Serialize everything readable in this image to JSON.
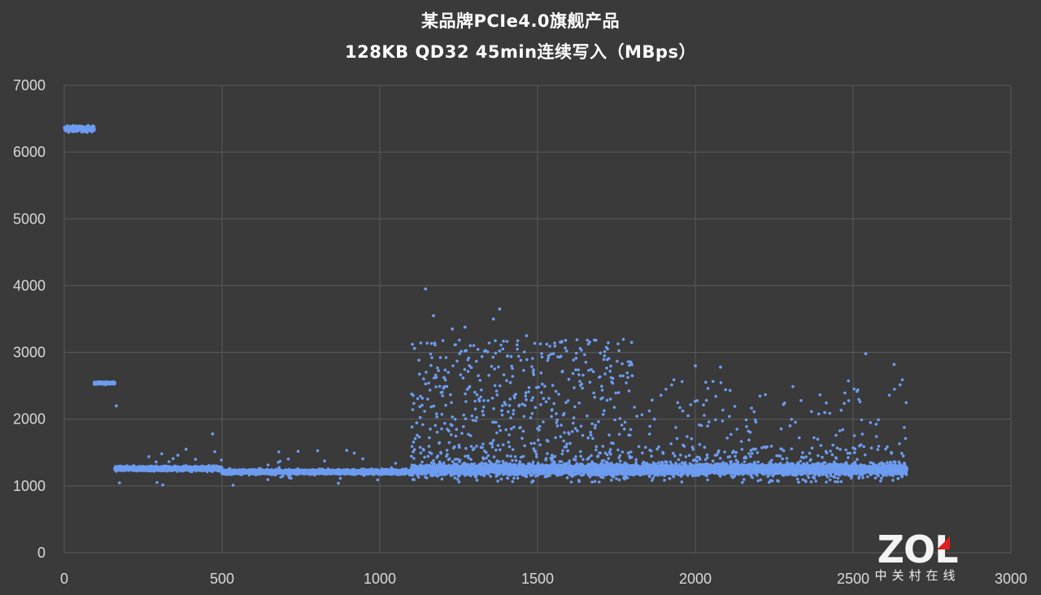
{
  "title": {
    "line1": "某品牌PCIe4.0旗舰产品",
    "line2": "128KB QD32 45min连续写入（MBps）"
  },
  "watermark": {
    "logo": "ZOL",
    "subtitle": "中关村在线"
  },
  "colors": {
    "background": "#3a3a3a",
    "gridline": "#5a5a5a",
    "points": "#6d9cf0",
    "text": "#ffffff"
  },
  "chart_data": {
    "type": "scatter",
    "title": "某品牌PCIe4.0旗舰产品 128KB QD32 45min连续写入（MBps）",
    "xlabel": "",
    "ylabel": "",
    "xlim": [
      0,
      3000
    ],
    "ylim": [
      0,
      7000
    ],
    "x_ticks": [
      0,
      500,
      1000,
      1500,
      2000,
      2500,
      3000
    ],
    "y_ticks": [
      0,
      1000,
      2000,
      3000,
      4000,
      5000,
      6000,
      7000
    ],
    "grid": true,
    "legend": "none",
    "series": [
      {
        "segments": [
          {
            "x_start": 1,
            "x_end": 95,
            "y_typical": 6350,
            "y_spread": [
              6250,
              6440
            ]
          },
          {
            "x_start": 95,
            "x_end": 160,
            "y_typical": 2540,
            "y_spread": [
              2490,
              2580
            ]
          },
          {
            "x_start": 160,
            "x_end": 1100,
            "y_typical": 1230,
            "y_spread": [
              1000,
              1780
            ]
          },
          {
            "x_start": 1100,
            "x_end": 2670,
            "y_typical": 1270,
            "y_spread": [
              1000,
              3950
            ]
          }
        ],
        "notable_points": [
          {
            "x": 1145,
            "y": 3950
          },
          {
            "x": 1380,
            "y": 3650
          },
          {
            "x": 1360,
            "y": 3500
          },
          {
            "x": 1170,
            "y": 3550
          },
          {
            "x": 1270,
            "y": 3380
          },
          {
            "x": 1230,
            "y": 3350
          },
          {
            "x": 1465,
            "y": 3250
          },
          {
            "x": 1110,
            "y": 3060
          },
          {
            "x": 1550,
            "y": 2980
          },
          {
            "x": 2540,
            "y": 2980
          },
          {
            "x": 2630,
            "y": 2820
          },
          {
            "x": 2000,
            "y": 2800
          },
          {
            "x": 2080,
            "y": 2780
          },
          {
            "x": 1800,
            "y": 2650
          },
          {
            "x": 1870,
            "y": 2000
          },
          {
            "x": 165,
            "y": 2200
          },
          {
            "x": 470,
            "y": 1780
          },
          {
            "x": 2300,
            "y": 1900
          },
          {
            "x": 2410,
            "y": 2100
          }
        ]
      }
    ]
  }
}
